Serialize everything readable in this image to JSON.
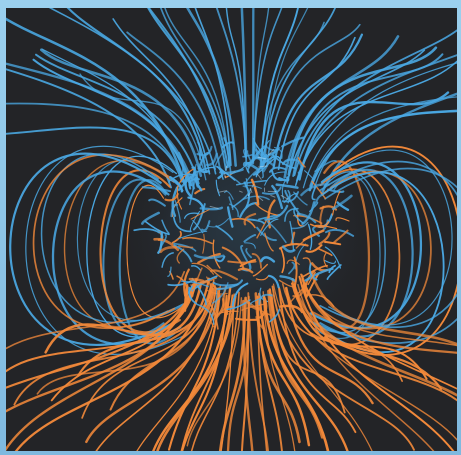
{
  "image": {
    "subject": "magnetic-field-lines-visualization",
    "colors": {
      "frame_blue": "#8cc4e6",
      "background_dark": "#232427",
      "field_blue": "#4aa8e3",
      "field_orange": "#f2893a",
      "highlight_white": "#d6f1ff"
    }
  }
}
